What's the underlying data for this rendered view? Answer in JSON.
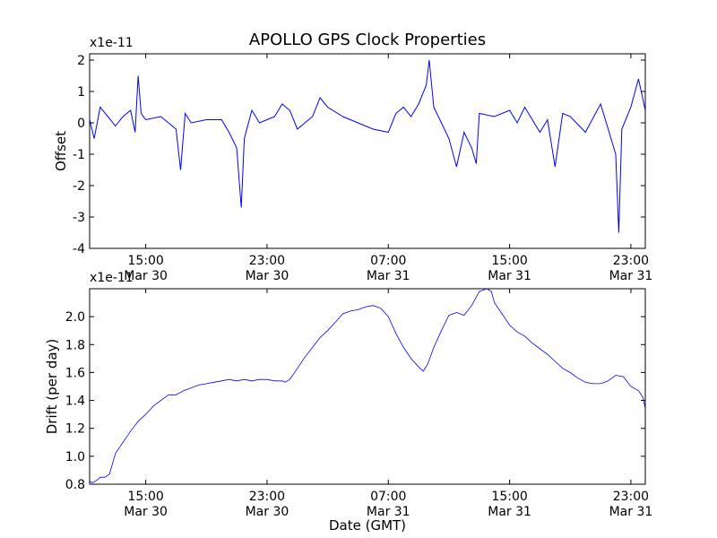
{
  "figure": {
    "title": "APOLLO GPS Clock Properties"
  },
  "chart_data": [
    {
      "type": "line",
      "ylabel": "Offset",
      "xlabel": "",
      "exponent_label": "x1e-11",
      "scale": "1e-11",
      "ylim": [
        -4,
        2.2
      ],
      "yticks": [
        "-4",
        "-3",
        "-2",
        "-1",
        "0",
        "1",
        "2"
      ],
      "xticks": [
        {
          "time": "15:00",
          "date": "Mar 30"
        },
        {
          "time": "23:00",
          "date": "Mar 30"
        },
        {
          "time": "07:00",
          "date": "Mar 31"
        },
        {
          "time": "15:00",
          "date": "Mar 31"
        },
        {
          "time": "23:00",
          "date": "Mar 31"
        }
      ],
      "xlim_hours": [
        11.3,
        23.95
      ],
      "grid": false,
      "series": [
        {
          "color": "#0000ff",
          "points": [
            [
              11.3,
              0.1
            ],
            [
              11.6,
              -0.5
            ],
            [
              12.0,
              0.5
            ],
            [
              12.5,
              0.2
            ],
            [
              13.0,
              -0.1
            ],
            [
              13.5,
              0.2
            ],
            [
              14.0,
              0.4
            ],
            [
              14.3,
              -0.3
            ],
            [
              14.5,
              1.5
            ],
            [
              14.7,
              0.3
            ],
            [
              15.0,
              0.1
            ],
            [
              16.0,
              0.2
            ],
            [
              17.0,
              -0.2
            ],
            [
              17.3,
              -1.5
            ],
            [
              17.6,
              0.3
            ],
            [
              18.0,
              0.0
            ],
            [
              19.0,
              0.1
            ],
            [
              20.0,
              0.1
            ],
            [
              20.5,
              -0.3
            ],
            [
              21.0,
              -0.8
            ],
            [
              21.3,
              -2.7
            ],
            [
              21.5,
              -0.5
            ],
            [
              22.0,
              0.4
            ],
            [
              22.5,
              0.0
            ],
            [
              23.0,
              0.1
            ],
            [
              23.5,
              0.2
            ],
            [
              0.0,
              0.6
            ],
            [
              0.5,
              0.4
            ],
            [
              1.0,
              -0.2
            ],
            [
              1.5,
              0.0
            ],
            [
              2.0,
              0.2
            ],
            [
              2.5,
              0.8
            ],
            [
              3.0,
              0.5
            ],
            [
              4.0,
              0.2
            ],
            [
              5.0,
              0.0
            ],
            [
              6.0,
              -0.2
            ],
            [
              7.0,
              -0.3
            ],
            [
              7.5,
              0.3
            ],
            [
              8.0,
              0.5
            ],
            [
              8.5,
              0.2
            ],
            [
              9.0,
              0.6
            ],
            [
              9.5,
              1.2
            ],
            [
              9.7,
              2.0
            ],
            [
              10.0,
              0.5
            ],
            [
              10.5,
              0.0
            ],
            [
              11.0,
              -0.5
            ],
            [
              11.5,
              -1.4
            ],
            [
              12.0,
              -0.3
            ],
            [
              12.5,
              -0.8
            ],
            [
              12.8,
              -1.3
            ],
            [
              13.0,
              0.3
            ],
            [
              14.0,
              0.2
            ],
            [
              15.0,
              0.4
            ],
            [
              15.5,
              0.0
            ],
            [
              16.0,
              0.5
            ],
            [
              17.0,
              -0.3
            ],
            [
              17.5,
              0.1
            ],
            [
              18.0,
              -1.4
            ],
            [
              18.5,
              0.3
            ],
            [
              19.0,
              0.2
            ],
            [
              20.0,
              -0.3
            ],
            [
              21.0,
              0.6
            ],
            [
              21.5,
              -0.2
            ],
            [
              22.0,
              -1.0
            ],
            [
              22.2,
              -3.5
            ],
            [
              22.4,
              -0.2
            ],
            [
              23.0,
              0.5
            ],
            [
              23.5,
              1.4
            ],
            [
              23.95,
              0.4
            ]
          ]
        }
      ]
    },
    {
      "type": "line",
      "ylabel": "Drift (per day)",
      "xlabel": "Date (GMT)",
      "exponent_label": "x1e-11",
      "scale": "1e-11",
      "ylim": [
        0.8,
        2.2
      ],
      "yticks": [
        "0.8",
        "1.0",
        "1.2",
        "1.4",
        "1.6",
        "1.8",
        "2.0"
      ],
      "xticks": [
        {
          "time": "15:00",
          "date": "Mar 30"
        },
        {
          "time": "23:00",
          "date": "Mar 30"
        },
        {
          "time": "07:00",
          "date": "Mar 31"
        },
        {
          "time": "15:00",
          "date": "Mar 31"
        },
        {
          "time": "23:00",
          "date": "Mar 31"
        }
      ],
      "xlim_hours": [
        11.3,
        23.95
      ],
      "grid": false,
      "series": [
        {
          "color": "#0000ff",
          "points": [
            [
              11.3,
              0.82
            ],
            [
              11.5,
              0.81
            ],
            [
              11.8,
              0.83
            ],
            [
              12.0,
              0.85
            ],
            [
              12.3,
              0.85
            ],
            [
              12.6,
              0.87
            ],
            [
              13.0,
              1.02
            ],
            [
              13.5,
              1.1
            ],
            [
              14.0,
              1.18
            ],
            [
              14.5,
              1.25
            ],
            [
              15.0,
              1.3
            ],
            [
              15.5,
              1.36
            ],
            [
              16.0,
              1.4
            ],
            [
              16.5,
              1.44
            ],
            [
              17.0,
              1.44
            ],
            [
              17.5,
              1.47
            ],
            [
              18.0,
              1.49
            ],
            [
              18.5,
              1.51
            ],
            [
              19.0,
              1.52
            ],
            [
              19.5,
              1.53
            ],
            [
              20.0,
              1.54
            ],
            [
              20.5,
              1.55
            ],
            [
              21.0,
              1.54
            ],
            [
              21.5,
              1.55
            ],
            [
              22.0,
              1.54
            ],
            [
              22.5,
              1.55
            ],
            [
              23.0,
              1.55
            ],
            [
              23.5,
              1.54
            ],
            [
              0.0,
              1.54
            ],
            [
              0.2,
              1.53
            ],
            [
              0.5,
              1.55
            ],
            [
              1.0,
              1.63
            ],
            [
              1.5,
              1.71
            ],
            [
              2.0,
              1.78
            ],
            [
              2.5,
              1.85
            ],
            [
              3.0,
              1.9
            ],
            [
              3.5,
              1.96
            ],
            [
              4.0,
              2.02
            ],
            [
              4.5,
              2.04
            ],
            [
              5.0,
              2.05
            ],
            [
              5.5,
              2.07
            ],
            [
              6.0,
              2.08
            ],
            [
              6.5,
              2.06
            ],
            [
              7.0,
              2.0
            ],
            [
              7.5,
              1.88
            ],
            [
              8.0,
              1.78
            ],
            [
              8.5,
              1.7
            ],
            [
              9.0,
              1.64
            ],
            [
              9.3,
              1.61
            ],
            [
              9.6,
              1.66
            ],
            [
              10.0,
              1.78
            ],
            [
              10.5,
              1.9
            ],
            [
              11.0,
              2.01
            ],
            [
              11.5,
              2.03
            ],
            [
              12.0,
              2.01
            ],
            [
              12.5,
              2.08
            ],
            [
              13.0,
              2.18
            ],
            [
              13.5,
              2.2
            ],
            [
              13.8,
              2.18
            ],
            [
              14.0,
              2.1
            ],
            [
              14.5,
              2.02
            ],
            [
              15.0,
              1.94
            ],
            [
              15.5,
              1.89
            ],
            [
              16.0,
              1.86
            ],
            [
              16.5,
              1.81
            ],
            [
              17.0,
              1.77
            ],
            [
              17.5,
              1.73
            ],
            [
              18.0,
              1.68
            ],
            [
              18.5,
              1.63
            ],
            [
              19.0,
              1.6
            ],
            [
              19.5,
              1.56
            ],
            [
              20.0,
              1.53
            ],
            [
              20.5,
              1.52
            ],
            [
              21.0,
              1.52
            ],
            [
              21.5,
              1.54
            ],
            [
              22.0,
              1.58
            ],
            [
              22.5,
              1.57
            ],
            [
              23.0,
              1.5
            ],
            [
              23.5,
              1.47
            ],
            [
              23.8,
              1.42
            ],
            [
              23.95,
              1.34
            ]
          ]
        }
      ]
    }
  ]
}
